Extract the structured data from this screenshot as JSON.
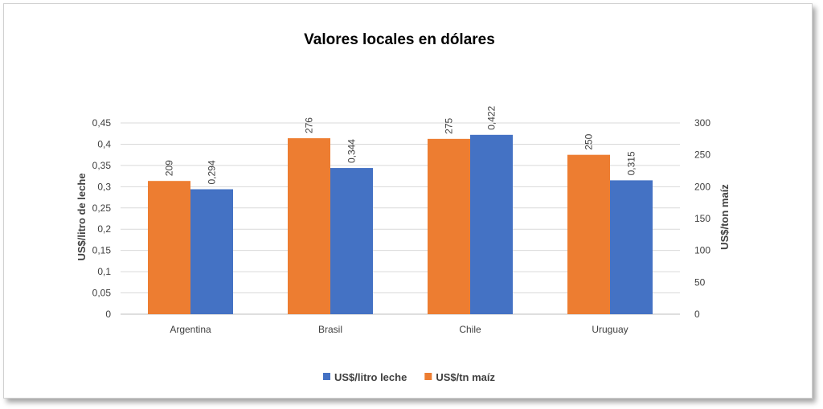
{
  "chart_data": {
    "type": "bar",
    "title": "Valores locales en dólares",
    "categories": [
      "Argentina",
      "Brasil",
      "Chile",
      "Uruguay"
    ],
    "y_left": {
      "label": "US$/litro de leche",
      "range": [
        0,
        0.45
      ],
      "ticks": [
        "0",
        "0,05",
        "0,1",
        "0,15",
        "0,2",
        "0,25",
        "0,3",
        "0,35",
        "0,4",
        "0,45"
      ]
    },
    "y_right": {
      "label": "US$/ton maíz",
      "range": [
        0,
        300
      ],
      "ticks": [
        "0",
        "50",
        "100",
        "150",
        "200",
        "250",
        "300"
      ]
    },
    "series": [
      {
        "name": "US$/tn maíz",
        "axis": "right",
        "color": "#ED7D31",
        "values": [
          209,
          276,
          275,
          250
        ],
        "labels": [
          "209",
          "276",
          "275",
          "250"
        ]
      },
      {
        "name": "US$/litro leche",
        "axis": "left",
        "color": "#4472C4",
        "values": [
          0.294,
          0.344,
          0.422,
          0.315
        ],
        "labels": [
          "0,294",
          "0,344",
          "0,422",
          "0,315"
        ]
      }
    ],
    "legend": {
      "position": "bottom",
      "items": [
        {
          "name": "US$/litro leche",
          "color": "#4472C4"
        },
        {
          "name": "US$/tn maíz",
          "color": "#ED7D31"
        }
      ]
    },
    "grid": true
  }
}
